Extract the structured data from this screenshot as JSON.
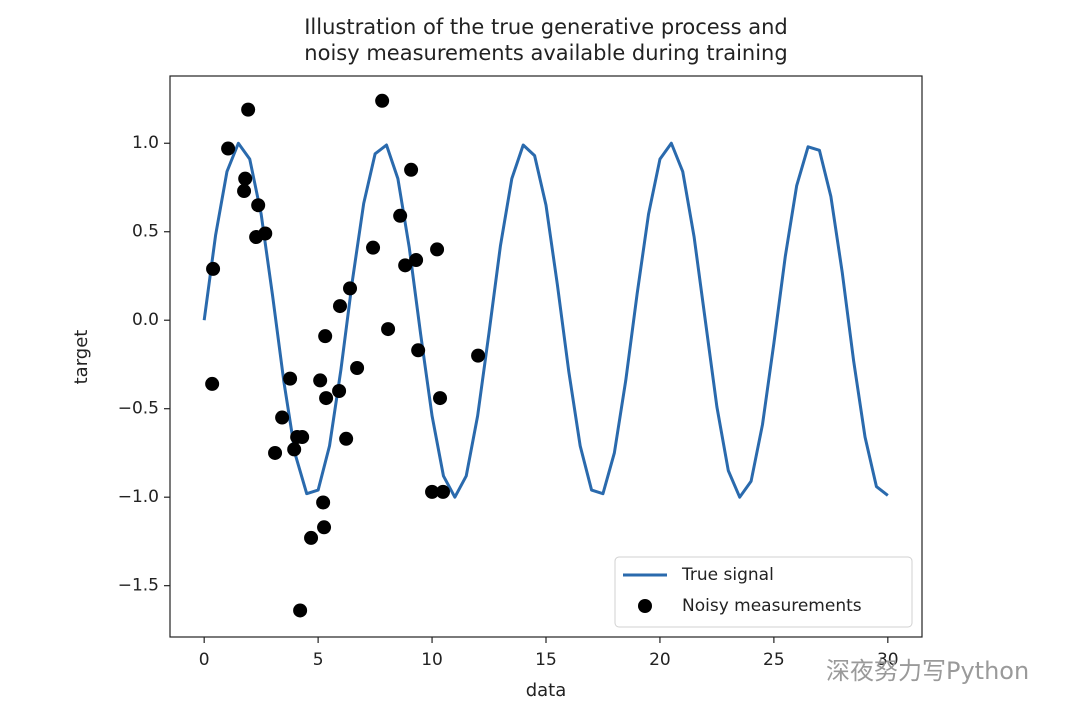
{
  "chart_data": {
    "type": "line",
    "title": [
      "Illustration of the true generative process and",
      "noisy measurements available during training"
    ],
    "xlabel": "data",
    "ylabel": "target",
    "xlim": [
      -1.5,
      31.5
    ],
    "ylim": [
      -1.79,
      1.38
    ],
    "xticks": [
      0,
      5,
      10,
      15,
      20,
      25,
      30
    ],
    "yticks": [
      {
        "value": -1.5,
        "label": "−1.5"
      },
      {
        "value": -1.0,
        "label": "−1.0"
      },
      {
        "value": -0.5,
        "label": "−0.5"
      },
      {
        "value": 0.0,
        "label": "0.0"
      },
      {
        "value": 0.5,
        "label": "0.5"
      },
      {
        "value": 1.0,
        "label": "1.0"
      }
    ],
    "grid": false,
    "legend": "lower right",
    "series": [
      {
        "name": "True signal",
        "type": "line",
        "color": "#2a6aad",
        "x": [
          0,
          0.5,
          1,
          1.5,
          2,
          2.5,
          3,
          3.5,
          4,
          4.5,
          5,
          5.5,
          6,
          6.5,
          7,
          7.5,
          8,
          8.5,
          9,
          9.5,
          10,
          10.5,
          11,
          11.5,
          12,
          12.5,
          13,
          13.5,
          14,
          14.5,
          15,
          15.5,
          16,
          16.5,
          17,
          17.5,
          18,
          18.5,
          19,
          19.5,
          20,
          20.5,
          21,
          21.5,
          22,
          22.5,
          23,
          23.5,
          24,
          24.5,
          25,
          25.5,
          26,
          26.5,
          27,
          27.5,
          28,
          28.5,
          29,
          29.5,
          30
        ],
        "values": [
          0,
          0.48,
          0.84,
          1.0,
          0.91,
          0.6,
          0.14,
          -0.35,
          -0.76,
          -0.98,
          -0.96,
          -0.71,
          -0.28,
          0.22,
          0.66,
          0.94,
          0.99,
          0.8,
          0.41,
          -0.08,
          -0.54,
          -0.88,
          -1.0,
          -0.88,
          -0.54,
          -0.07,
          0.42,
          0.8,
          0.99,
          0.93,
          0.65,
          0.2,
          -0.29,
          -0.71,
          -0.96,
          -0.98,
          -0.75,
          -0.34,
          0.15,
          0.6,
          0.91,
          1.0,
          0.84,
          0.47,
          -0.01,
          -0.49,
          -0.85,
          -1.0,
          -0.91,
          -0.59,
          -0.13,
          0.36,
          0.76,
          0.98,
          0.96,
          0.7,
          0.27,
          -0.23,
          -0.66,
          -0.94,
          -0.99
        ]
      },
      {
        "name": "Noisy measurements",
        "type": "scatter",
        "color": "#000000",
        "x": [
          0.39,
          0.35,
          1.05,
          1.93,
          1.8,
          1.75,
          2.37,
          2.28,
          2.68,
          3.11,
          3.42,
          3.77,
          3.95,
          4.08,
          4.3,
          4.21,
          4.69,
          5.09,
          5.22,
          5.26,
          5.31,
          5.35,
          5.92,
          5.96,
          6.23,
          6.4,
          6.71,
          7.41,
          7.81,
          8.07,
          8.6,
          8.82,
          9.08,
          9.3,
          9.39,
          10.0,
          10.22,
          10.35,
          10.48,
          12.02
        ],
        "values": [
          0.29,
          -0.36,
          0.97,
          1.19,
          0.8,
          0.73,
          0.65,
          0.47,
          0.49,
          -0.75,
          -0.55,
          -0.33,
          -0.73,
          -0.66,
          -0.66,
          -1.64,
          -1.23,
          -0.34,
          -1.03,
          -1.17,
          -0.09,
          -0.44,
          -0.4,
          0.08,
          -0.67,
          0.18,
          -0.27,
          0.41,
          1.24,
          -0.05,
          0.59,
          0.31,
          0.85,
          0.34,
          -0.17,
          -0.97,
          0.4,
          -0.44,
          -0.97,
          -0.2
        ]
      }
    ],
    "watermark": "深夜努力写Python"
  }
}
